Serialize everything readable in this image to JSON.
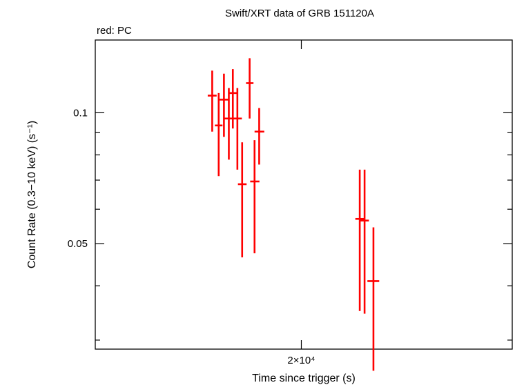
{
  "chart_data": {
    "type": "scatter",
    "title": "Swift/XRT data of GRB 151120A",
    "subtitle": "red: PC",
    "xlabel": "Time since trigger (s)",
    "ylabel": "Count Rate (0.3−10 keV) (s⁻¹)",
    "x_scale": "log",
    "y_scale": "log",
    "xlim": [
      13200,
      30600
    ],
    "ylim": [
      0.0286,
      0.147
    ],
    "x_ticks": [
      {
        "value": 20000,
        "label": "2×10⁴"
      }
    ],
    "y_ticks": [
      {
        "value": 0.1,
        "label": "0.1"
      },
      {
        "value": 0.05,
        "label": "0.05"
      }
    ],
    "grid": false,
    "series": [
      {
        "color": "#ff0000",
        "points": [
          {
            "x": 16710,
            "xlo": 16560,
            "xhi": 16860,
            "y": 0.1095,
            "ylo": 0.0905,
            "yhi": 0.125
          },
          {
            "x": 16930,
            "xlo": 16800,
            "xhi": 17060,
            "y": 0.0935,
            "ylo": 0.0715,
            "yhi": 0.111
          },
          {
            "x": 17110,
            "xlo": 16960,
            "xhi": 17260,
            "y": 0.1072,
            "ylo": 0.088,
            "yhi": 0.123
          },
          {
            "x": 17280,
            "xlo": 17120,
            "xhi": 17450,
            "y": 0.097,
            "ylo": 0.078,
            "yhi": 0.114
          },
          {
            "x": 17420,
            "xlo": 17280,
            "xhi": 17570,
            "y": 0.111,
            "ylo": 0.092,
            "yhi": 0.126
          },
          {
            "x": 17580,
            "xlo": 17420,
            "xhi": 17740,
            "y": 0.097,
            "ylo": 0.074,
            "yhi": 0.114
          },
          {
            "x": 17750,
            "xlo": 17600,
            "xhi": 17910,
            "y": 0.0685,
            "ylo": 0.0465,
            "yhi": 0.0855
          },
          {
            "x": 18020,
            "xlo": 17890,
            "xhi": 18160,
            "y": 0.117,
            "ylo": 0.097,
            "yhi": 0.1335
          },
          {
            "x": 18200,
            "xlo": 18040,
            "xhi": 18380,
            "y": 0.0695,
            "ylo": 0.0475,
            "yhi": 0.0865
          },
          {
            "x": 18370,
            "xlo": 18200,
            "xhi": 18560,
            "y": 0.0905,
            "ylo": 0.076,
            "yhi": 0.1025
          },
          {
            "x": 22500,
            "xlo": 22300,
            "xhi": 22720,
            "y": 0.057,
            "ylo": 0.035,
            "yhi": 0.074
          },
          {
            "x": 22720,
            "xlo": 22520,
            "xhi": 22920,
            "y": 0.0565,
            "ylo": 0.0345,
            "yhi": 0.074
          },
          {
            "x": 23130,
            "xlo": 22850,
            "xhi": 23400,
            "y": 0.041,
            "ylo": 0.0255,
            "yhi": 0.0545
          }
        ]
      }
    ]
  }
}
